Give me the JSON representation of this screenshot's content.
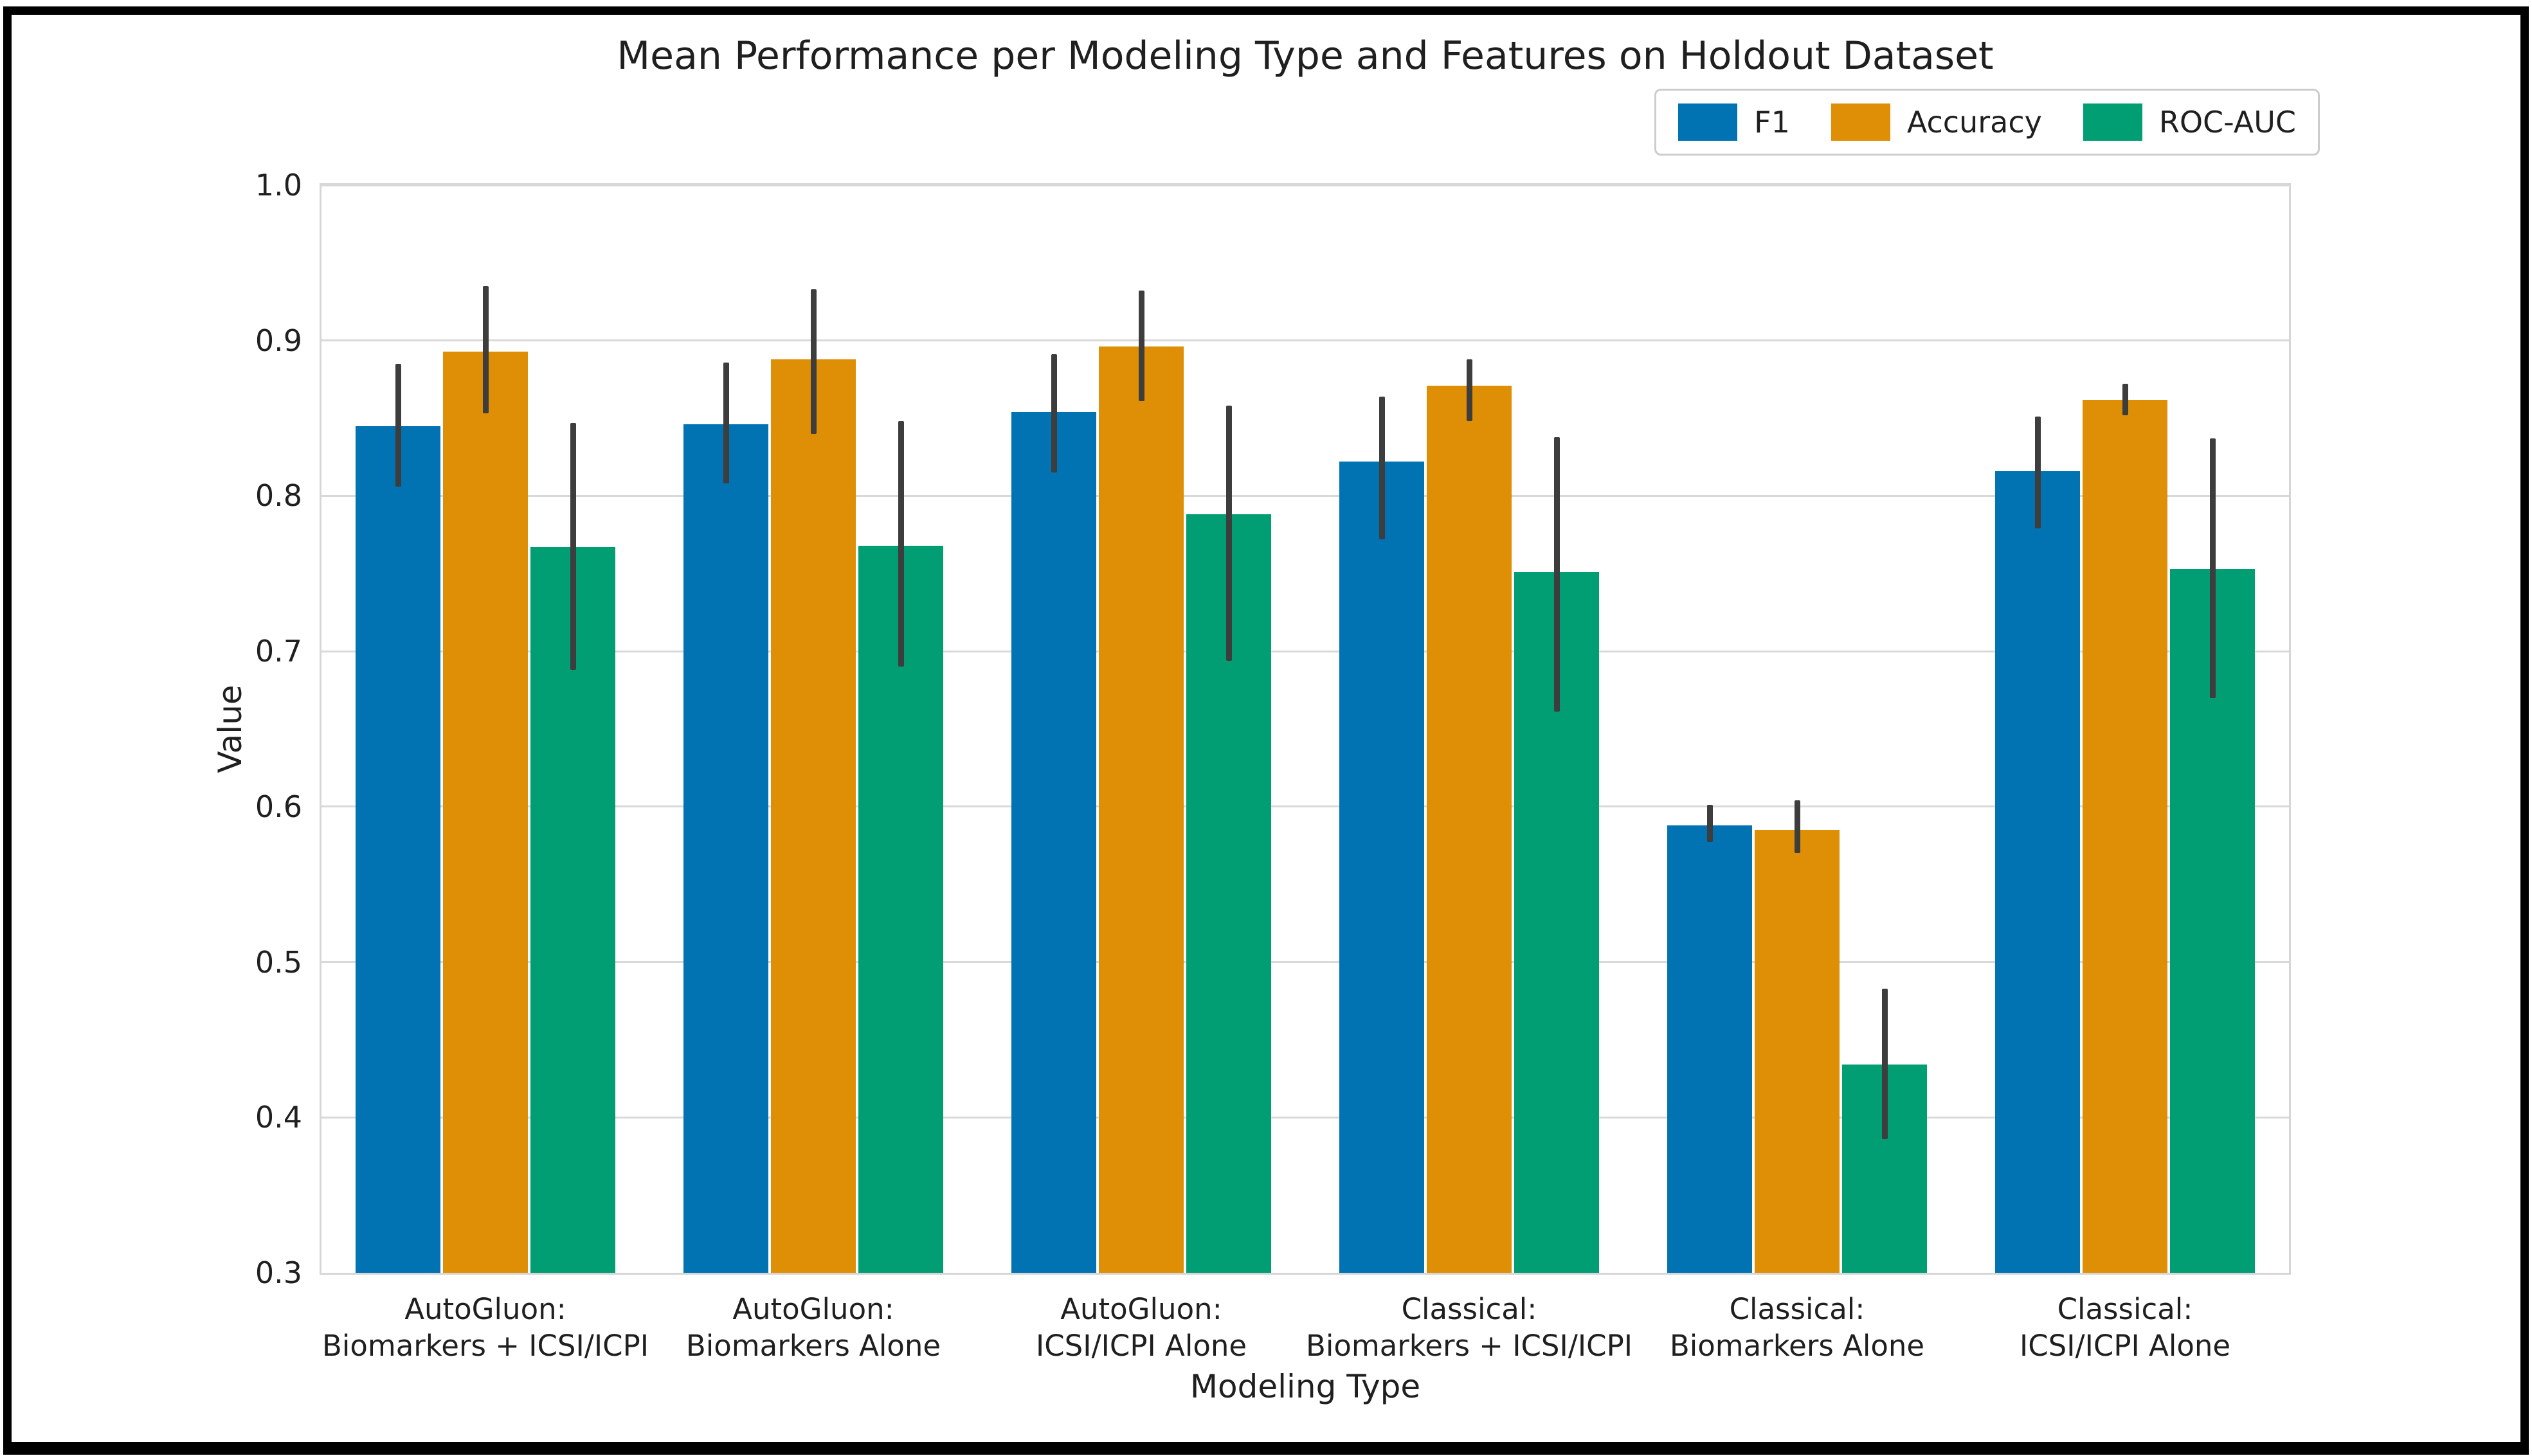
{
  "figure": {
    "background_color": "#ffffff",
    "frame_color": "#000000"
  },
  "chart_data": {
    "type": "bar",
    "title": "Mean Performance per Modeling Type and Features on Holdout Dataset",
    "xlabel": "Modeling Type",
    "ylabel": "Value",
    "ylim": [
      0.3,
      1.0
    ],
    "yticks": [
      1.0,
      0.9,
      0.8,
      0.7,
      0.6,
      0.5,
      0.4,
      0.3
    ],
    "grid": true,
    "grid_color": "#d9d9d9",
    "error_bar_color": "#3d3d3d",
    "legend_position": "top-right",
    "categories": [
      "AutoGluon:\nBiomarkers + ICSI/ICPI",
      "AutoGluon:\nBiomarkers Alone",
      "AutoGluon:\nICSI/ICPI Alone",
      "Classical:\nBiomarkers + ICSI/ICPI",
      "Classical:\nBiomarkers Alone",
      "Classical:\nICSI/ICPI Alone"
    ],
    "series": [
      {
        "name": "F1",
        "color": "#0173b2",
        "values": [
          0.845,
          0.846,
          0.854,
          0.822,
          0.588,
          0.816
        ],
        "err_low": [
          0.806,
          0.808,
          0.815,
          0.772,
          0.577,
          0.779
        ],
        "err_high": [
          0.885,
          0.886,
          0.891,
          0.864,
          0.601,
          0.851
        ]
      },
      {
        "name": "Accuracy",
        "color": "#de8f05",
        "values": [
          0.893,
          0.888,
          0.896,
          0.871,
          0.585,
          0.862
        ],
        "err_low": [
          0.853,
          0.84,
          0.861,
          0.848,
          0.57,
          0.852
        ],
        "err_high": [
          0.935,
          0.933,
          0.932,
          0.888,
          0.604,
          0.872
        ]
      },
      {
        "name": "ROC-AUC",
        "color": "#029e73",
        "values": [
          0.767,
          0.768,
          0.788,
          0.751,
          0.434,
          0.753
        ],
        "err_low": [
          0.688,
          0.69,
          0.694,
          0.661,
          0.386,
          0.67
        ],
        "err_high": [
          0.847,
          0.848,
          0.858,
          0.838,
          0.483,
          0.837
        ]
      }
    ]
  }
}
